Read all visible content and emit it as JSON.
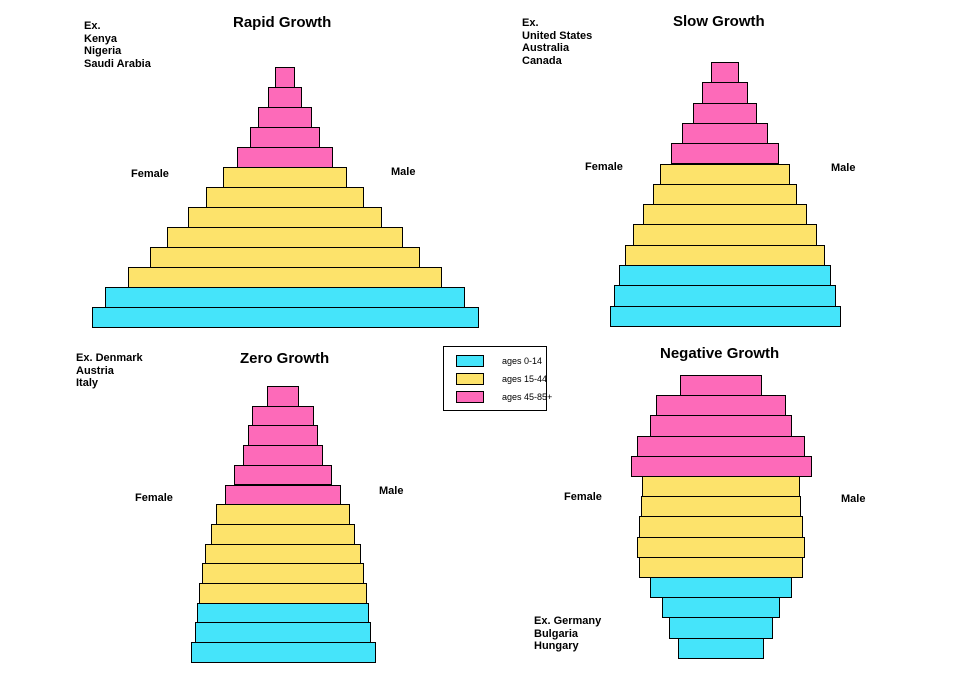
{
  "colors": {
    "young": "#45e4fa",
    "middle": "#fde36b",
    "old": "#fd6ab9"
  },
  "legend": [
    {
      "key": "young",
      "label": "ages 0-14"
    },
    {
      "key": "middle",
      "label": "ages 15-44"
    },
    {
      "key": "old",
      "label": "ages 45-85+"
    }
  ],
  "pyramids": [
    {
      "title": "Rapid Growth",
      "example_lines": [
        "Ex.",
        "Kenya",
        "Nigeria",
        "Saudi Arabia"
      ],
      "female_label": "Female",
      "male_label": "Male",
      "bars": [
        {
          "group": "old",
          "rel_width": 0.05
        },
        {
          "group": "old",
          "rel_width": 0.09
        },
        {
          "group": "old",
          "rel_width": 0.14
        },
        {
          "group": "old",
          "rel_width": 0.18
        },
        {
          "group": "old",
          "rel_width": 0.25
        },
        {
          "group": "middle",
          "rel_width": 0.32
        },
        {
          "group": "middle",
          "rel_width": 0.41
        },
        {
          "group": "middle",
          "rel_width": 0.5
        },
        {
          "group": "middle",
          "rel_width": 0.61
        },
        {
          "group": "middle",
          "rel_width": 0.7
        },
        {
          "group": "middle",
          "rel_width": 0.81
        },
        {
          "group": "young",
          "rel_width": 0.93
        },
        {
          "group": "young",
          "rel_width": 1.0
        }
      ]
    },
    {
      "title": "Slow Growth",
      "example_lines": [
        "Ex.",
        "United States",
        "Australia",
        "Canada"
      ],
      "female_label": "Female",
      "male_label": "Male",
      "bars": [
        {
          "group": "old",
          "rel_width": 0.12
        },
        {
          "group": "old",
          "rel_width": 0.2
        },
        {
          "group": "old",
          "rel_width": 0.28
        },
        {
          "group": "old",
          "rel_width": 0.37
        },
        {
          "group": "old",
          "rel_width": 0.47
        },
        {
          "group": "middle",
          "rel_width": 0.56
        },
        {
          "group": "middle",
          "rel_width": 0.62
        },
        {
          "group": "middle",
          "rel_width": 0.71
        },
        {
          "group": "middle",
          "rel_width": 0.8
        },
        {
          "group": "middle",
          "rel_width": 0.87
        },
        {
          "group": "young",
          "rel_width": 0.92
        },
        {
          "group": "young",
          "rel_width": 0.96
        },
        {
          "group": "young",
          "rel_width": 1.0
        }
      ]
    },
    {
      "title": "Zero Growth",
      "example_lines": [
        "Ex. Denmark",
        "Austria",
        "Italy"
      ],
      "female_label": "Female",
      "male_label": "Male",
      "bars": [
        {
          "group": "old",
          "rel_width": 0.17
        },
        {
          "group": "old",
          "rel_width": 0.34
        },
        {
          "group": "old",
          "rel_width": 0.38
        },
        {
          "group": "old",
          "rel_width": 0.43
        },
        {
          "group": "old",
          "rel_width": 0.53
        },
        {
          "group": "old",
          "rel_width": 0.63
        },
        {
          "group": "middle",
          "rel_width": 0.72
        },
        {
          "group": "middle",
          "rel_width": 0.78
        },
        {
          "group": "middle",
          "rel_width": 0.84
        },
        {
          "group": "middle",
          "rel_width": 0.88
        },
        {
          "group": "middle",
          "rel_width": 0.91
        },
        {
          "group": "young",
          "rel_width": 0.93
        },
        {
          "group": "young",
          "rel_width": 0.95
        },
        {
          "group": "young",
          "rel_width": 1.0
        }
      ]
    },
    {
      "title": "Negative Growth",
      "example_lines": [
        "Ex. Germany",
        "Bulgaria",
        "Hungary"
      ],
      "female_label": "Female",
      "male_label": "Male",
      "bars": [
        {
          "group": "old",
          "rel_width": 0.45
        },
        {
          "group": "old",
          "rel_width": 0.72
        },
        {
          "group": "old",
          "rel_width": 0.79
        },
        {
          "group": "old",
          "rel_width": 0.93
        },
        {
          "group": "old",
          "rel_width": 1.0
        },
        {
          "group": "middle",
          "rel_width": 0.87
        },
        {
          "group": "middle",
          "rel_width": 0.88
        },
        {
          "group": "middle",
          "rel_width": 0.91
        },
        {
          "group": "middle",
          "rel_width": 0.93
        },
        {
          "group": "middle",
          "rel_width": 0.91
        },
        {
          "group": "young",
          "rel_width": 0.78
        },
        {
          "group": "young",
          "rel_width": 0.65
        },
        {
          "group": "young",
          "rel_width": 0.57
        },
        {
          "group": "young",
          "rel_width": 0.48
        }
      ]
    }
  ]
}
